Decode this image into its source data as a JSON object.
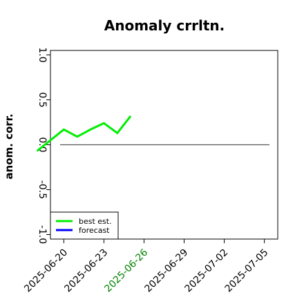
{
  "chart_data": {
    "type": "line",
    "title": "Anomaly crrltn.",
    "xlabel": "",
    "ylabel": "anom. corr.",
    "ylim": [
      -1.0,
      1.0
    ],
    "yticks": [
      {
        "value": -1.0,
        "label": "-1.0"
      },
      {
        "value": -0.5,
        "label": "-0.5"
      },
      {
        "value": 0.0,
        "label": "0.0"
      },
      {
        "value": 0.5,
        "label": "0.5"
      },
      {
        "value": 1.0,
        "label": "1.0"
      }
    ],
    "xlim": [
      "2025-06-19",
      "2025-07-06"
    ],
    "xticks": [
      {
        "value": "2025-06-20",
        "label": "2025-06-20",
        "color": "#000000"
      },
      {
        "value": "2025-06-23",
        "label": "2025-06-23",
        "color": "#000000"
      },
      {
        "value": "2025-06-26",
        "label": "2025-06-26",
        "color": "#008000"
      },
      {
        "value": "2025-06-29",
        "label": "2025-06-29",
        "color": "#000000"
      },
      {
        "value": "2025-07-02",
        "label": "2025-07-02",
        "color": "#000000"
      },
      {
        "value": "2025-07-05",
        "label": "2025-07-05",
        "color": "#000000"
      }
    ],
    "reference_line": {
      "y": 0.0,
      "color": "#555555"
    },
    "series": [
      {
        "name": "best est.",
        "color": "#00ee00",
        "points": [
          {
            "x": "2025-06-18",
            "y": -0.07
          },
          {
            "x": "2025-06-20",
            "y": 0.17
          },
          {
            "x": "2025-06-21",
            "y": 0.09
          },
          {
            "x": "2025-06-22",
            "y": 0.17
          },
          {
            "x": "2025-06-23",
            "y": 0.24
          },
          {
            "x": "2025-06-24",
            "y": 0.13
          },
          {
            "x": "2025-06-25",
            "y": 0.32
          }
        ]
      },
      {
        "name": "forecast",
        "color": "#0000ff",
        "points": []
      }
    ],
    "legend": {
      "placement": "bottom-left"
    },
    "grid": false
  }
}
